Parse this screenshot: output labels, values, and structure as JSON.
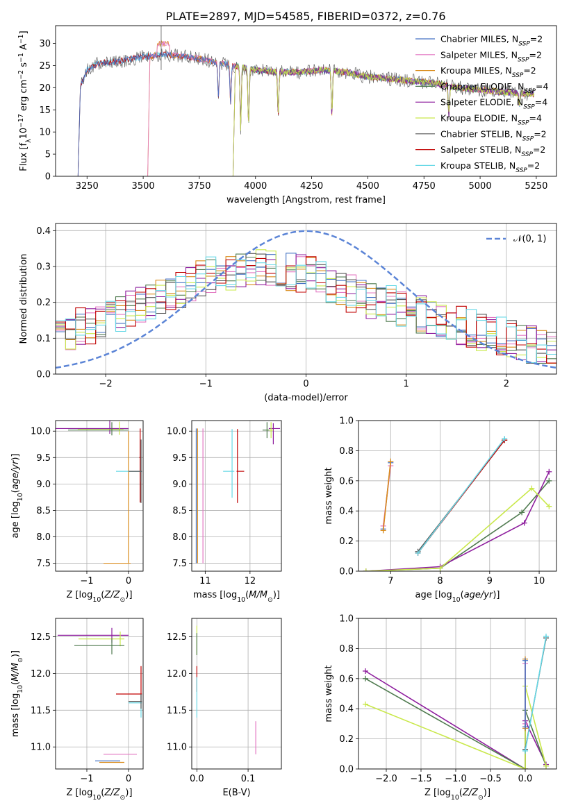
{
  "figure_title": "PLATE=2897, MJD=54585, FIBERID=0372, z=0.76",
  "model_colors": [
    "#4472c4",
    "#e377c2",
    "#d98b1a",
    "#4f7a4f",
    "#8e1e9e",
    "#c9e84a",
    "#555555",
    "#c00000",
    "#66d8e6"
  ],
  "chart_data": [
    {
      "id": "spectrum",
      "type": "line",
      "xlabel": "wavelength [Angstrom, rest frame]",
      "ylabel": "Flux [f_λ10^-17 erg cm^-2 s^-1 A^-1]",
      "xlim": [
        3110,
        5340
      ],
      "ylim": [
        0,
        34
      ],
      "xticks": [
        3250,
        3500,
        3750,
        4000,
        4250,
        4500,
        4750,
        5000,
        5250
      ],
      "yticks": [
        0,
        5,
        10,
        15,
        20,
        25,
        30
      ],
      "grid": false,
      "legend_position": "top-right",
      "series": [
        {
          "name": "Chabrier MILES, N_SSP=2",
          "start": 3220
        },
        {
          "name": "Salpeter MILES, N_SSP=2",
          "start": 3530
        },
        {
          "name": "Kroupa MILES, N_SSP=2",
          "start": 3530
        },
        {
          "name": "Chabrier ELODIE, N_SSP=4",
          "start": 3910
        },
        {
          "name": "Salpeter ELODIE, N_SSP=4",
          "start": 3910
        },
        {
          "name": "Kroupa ELODIE, N_SSP=4",
          "start": 3910
        },
        {
          "name": "Chabrier STELIB, N_SSP=2",
          "start": 3220
        },
        {
          "name": "Salpeter STELIB, N_SSP=2",
          "start": 3220
        },
        {
          "name": "Kroupa STELIB, N_SSP=2",
          "start": 3220
        }
      ],
      "continuum": {
        "x": [
          3220,
          3250,
          3300,
          3400,
          3500,
          3600,
          3700,
          3800,
          3900,
          4000,
          4100,
          4200,
          4300,
          4400,
          4500,
          4600,
          4700,
          4800,
          4900,
          5000,
          5100,
          5240
        ],
        "y": [
          20,
          24,
          25.5,
          26,
          27,
          27.5,
          27,
          26,
          25,
          24,
          23.5,
          23.5,
          24,
          23.5,
          22.5,
          22,
          21.5,
          21,
          20,
          19.5,
          19,
          18.5
        ]
      },
      "absorption_lines": [
        {
          "x": 3835,
          "y": 18
        },
        {
          "x": 3889,
          "y": 16.5
        },
        {
          "x": 3934,
          "y": 11
        },
        {
          "x": 3969,
          "y": 12
        },
        {
          "x": 4101,
          "y": 14
        },
        {
          "x": 4340,
          "y": 14
        },
        {
          "x": 4861,
          "y": 14
        },
        {
          "x": 5175,
          "y": 16
        }
      ]
    },
    {
      "id": "residuals",
      "type": "line",
      "xlabel": "(data-model)/error",
      "ylabel": "Normed distribution",
      "xlim": [
        -2.5,
        2.5
      ],
      "ylim": [
        0,
        0.42
      ],
      "xticks": [
        -2,
        -1,
        0,
        1,
        2
      ],
      "yticks": [
        0.0,
        0.1,
        0.2,
        0.3,
        0.4
      ],
      "grid": true,
      "legend_position": "top-right",
      "reference": {
        "name": "N(0,1)",
        "style": "dashed"
      },
      "histogram_envelope": {
        "x": [
          -2.5,
          -2.0,
          -1.5,
          -1.0,
          -0.5,
          0.0,
          0.5,
          1.0,
          1.5,
          2.0,
          2.5
        ],
        "y": [
          0.11,
          0.15,
          0.21,
          0.27,
          0.3,
          0.28,
          0.22,
          0.18,
          0.14,
          0.1,
          0.06
        ]
      }
    },
    {
      "id": "age_vs_Z",
      "type": "scatter",
      "xlabel": "Z [log10(Z/Z_sun)]",
      "ylabel": "age  [log10(age/yr)]",
      "xlim": [
        -1.75,
        0.35
      ],
      "ylim": [
        7.35,
        10.2
      ],
      "xticks": [
        -1,
        0
      ],
      "yticks": [
        7.5,
        8.0,
        8.5,
        9.0,
        9.5,
        10.0
      ],
      "grid": true,
      "points": [
        {
          "model": 4,
          "x": -0.45,
          "y": 10.05,
          "xerr": [
            1.3,
            0.45
          ],
          "yerr": [
            0.1,
            0.15
          ]
        },
        {
          "model": 5,
          "x": -0.22,
          "y": 10.03,
          "xerr": [
            1.0,
            0.1
          ],
          "yerr": [
            0.1,
            0.15
          ]
        },
        {
          "model": 3,
          "x": -0.4,
          "y": 10.02,
          "xerr": [
            1.05,
            0.4
          ],
          "yerr": [
            0.1,
            0.15
          ]
        },
        {
          "model": 2,
          "x": 0.0,
          "y": 7.5,
          "xerr": [
            0.6,
            0.05
          ],
          "yerr": [
            0.0,
            2.5
          ]
        },
        {
          "model": 7,
          "x": 0.28,
          "y": 9.5,
          "xerr": [
            0.02,
            0.02
          ],
          "yerr": [
            0.85,
            0.55
          ]
        },
        {
          "model": 8,
          "x": 0.3,
          "y": 9.24,
          "xerr": [
            0.6,
            0.02
          ],
          "yerr": [
            0.2,
            0.6
          ]
        },
        {
          "model": 6,
          "x": 0.3,
          "y": 9.24,
          "xerr": [
            0.3,
            0.02
          ],
          "yerr": [
            0.6,
            0.6
          ]
        }
      ]
    },
    {
      "id": "age_vs_mass",
      "type": "scatter",
      "xlabel": "mass [log10(M/M_sun)]",
      "ylabel": "",
      "xlim": [
        10.7,
        12.7
      ],
      "ylim": [
        7.35,
        10.2
      ],
      "xticks": [
        11,
        12
      ],
      "yticks": [
        7.5,
        8.0,
        8.5,
        9.0,
        9.5,
        10.0
      ],
      "grid": true,
      "points": [
        {
          "model": 0,
          "x": 10.8,
          "y": 7.5,
          "xerr": [
            0.0,
            0.0
          ],
          "yerr": [
            0.0,
            2.55
          ]
        },
        {
          "model": 1,
          "x": 10.95,
          "y": 7.5,
          "xerr": [
            0.0,
            0.0
          ],
          "yerr": [
            0.0,
            2.55
          ]
        },
        {
          "model": 2,
          "x": 10.83,
          "y": 7.5,
          "xerr": [
            0.0,
            0.0
          ],
          "yerr": [
            0.0,
            2.55
          ]
        },
        {
          "model": 7,
          "x": 11.72,
          "y": 9.24,
          "xerr": [
            0.02,
            0.15
          ],
          "yerr": [
            0.6,
            0.8
          ]
        },
        {
          "model": 8,
          "x": 11.6,
          "y": 9.24,
          "xerr": [
            0.2,
            0.05
          ],
          "yerr": [
            0.5,
            0.8
          ]
        },
        {
          "model": 4,
          "x": 12.52,
          "y": 10.05,
          "xerr": [
            0.1,
            0.15
          ],
          "yerr": [
            0.3,
            0.1
          ]
        },
        {
          "model": 5,
          "x": 12.47,
          "y": 10.02,
          "xerr": [
            0.1,
            0.05
          ],
          "yerr": [
            0.15,
            0.15
          ]
        },
        {
          "model": 3,
          "x": 12.38,
          "y": 10.02,
          "xerr": [
            0.1,
            0.05
          ],
          "yerr": [
            0.15,
            0.15
          ]
        }
      ]
    },
    {
      "id": "weight_vs_age",
      "type": "line",
      "xlabel": "age  [log10(age/yr)]",
      "ylabel": "mass weight",
      "xlim": [
        6.35,
        10.35
      ],
      "ylim": [
        0,
        1.0
      ],
      "xticks": [
        7,
        8,
        9,
        10
      ],
      "yticks": [
        0.0,
        0.2,
        0.4,
        0.6,
        0.8,
        1.0
      ],
      "grid": true,
      "series": [
        {
          "model": 0,
          "x": [
            6.85,
            7.0
          ],
          "y": [
            0.28,
            0.72
          ]
        },
        {
          "model": 1,
          "x": [
            6.85,
            7.0
          ],
          "y": [
            0.3,
            0.7
          ]
        },
        {
          "model": 2,
          "x": [
            6.85,
            7.0
          ],
          "y": [
            0.27,
            0.73
          ]
        },
        {
          "model": 6,
          "x": [
            7.55,
            9.3
          ],
          "y": [
            0.13,
            0.87
          ]
        },
        {
          "model": 7,
          "x": [
            7.55,
            9.3
          ],
          "y": [
            0.12,
            0.87
          ]
        },
        {
          "model": 8,
          "x": [
            7.55,
            9.3
          ],
          "y": [
            0.12,
            0.88
          ]
        },
        {
          "model": 3,
          "x": [
            6.5,
            8.0,
            9.65,
            10.2
          ],
          "y": [
            0.0,
            0.02,
            0.39,
            0.6
          ]
        },
        {
          "model": 4,
          "x": [
            6.5,
            8.0,
            9.7,
            10.2
          ],
          "y": [
            0.0,
            0.03,
            0.32,
            0.66
          ]
        },
        {
          "model": 5,
          "x": [
            6.5,
            8.0,
            9.85,
            10.2
          ],
          "y": [
            0.0,
            0.02,
            0.55,
            0.43
          ]
        }
      ]
    },
    {
      "id": "mass_vs_Z",
      "type": "scatter",
      "xlabel": "Z [log10(Z/Z_sun)]",
      "ylabel": "mass [log10(M/M_sun)]",
      "xlim": [
        -1.75,
        0.35
      ],
      "ylim": [
        10.7,
        12.75
      ],
      "xticks": [
        -1,
        0
      ],
      "yticks": [
        11.0,
        11.5,
        12.0,
        12.5
      ],
      "grid": true,
      "points": [
        {
          "model": 4,
          "x": -0.4,
          "y": 12.52,
          "xerr": [
            1.3,
            0.4
          ],
          "yerr": [
            0.1,
            0.1
          ]
        },
        {
          "model": 5,
          "x": -0.2,
          "y": 12.47,
          "xerr": [
            1.0,
            0.1
          ],
          "yerr": [
            0.1,
            0.1
          ]
        },
        {
          "model": 3,
          "x": -0.4,
          "y": 12.38,
          "xerr": [
            0.9,
            0.3
          ],
          "yerr": [
            0.12,
            0.1
          ]
        },
        {
          "model": 7,
          "x": 0.3,
          "y": 11.72,
          "xerr": [
            0.6,
            0.02
          ],
          "yerr": [
            0.1,
            0.38
          ]
        },
        {
          "model": 8,
          "x": 0.3,
          "y": 11.6,
          "xerr": [
            0.3,
            0.02
          ],
          "yerr": [
            0.2,
            0.1
          ]
        },
        {
          "model": 6,
          "x": 0.3,
          "y": 11.62,
          "xerr": [
            0.3,
            0.02
          ],
          "yerr": [
            0.1,
            0.1
          ]
        },
        {
          "model": 1,
          "x": -0.3,
          "y": 10.9,
          "xerr": [
            0.3,
            0.5
          ],
          "yerr": [
            0.0,
            0.0
          ]
        },
        {
          "model": 0,
          "x": -0.5,
          "y": 10.81,
          "xerr": [
            0.3,
            0.3
          ],
          "yerr": [
            0.0,
            0.0
          ]
        },
        {
          "model": 2,
          "x": -0.4,
          "y": 10.79,
          "xerr": [
            0.3,
            0.3
          ],
          "yerr": [
            0.0,
            0.0
          ]
        }
      ]
    },
    {
      "id": "mass_vs_EBV",
      "type": "scatter",
      "xlabel": "E(B-V)",
      "ylabel": "",
      "xlim": [
        -0.01,
        0.165
      ],
      "ylim": [
        10.7,
        12.75
      ],
      "xticks": [
        0.0,
        0.1
      ],
      "yticks": [
        11.0,
        11.5,
        12.0,
        12.5
      ],
      "grid": true,
      "points": [
        {
          "model": 5,
          "x": 0.0,
          "y": 12.5,
          "xerr": [
            0,
            0
          ],
          "yerr": [
            0.25,
            0.15
          ]
        },
        {
          "model": 3,
          "x": 0.0,
          "y": 12.4,
          "xerr": [
            0,
            0
          ],
          "yerr": [
            0.15,
            0.15
          ]
        },
        {
          "model": 7,
          "x": 0.0,
          "y": 11.9,
          "xerr": [
            0,
            0
          ],
          "yerr": [
            0.15,
            0.2
          ]
        },
        {
          "model": 8,
          "x": 0.0,
          "y": 11.6,
          "xerr": [
            0,
            0
          ],
          "yerr": [
            0.2,
            0.35
          ]
        },
        {
          "model": 1,
          "x": 0.115,
          "y": 11.1,
          "xerr": [
            0,
            0
          ],
          "yerr": [
            0.2,
            0.25
          ]
        }
      ]
    },
    {
      "id": "weight_vs_Z",
      "type": "line",
      "xlabel": "Z [log10(Z/Z_sun)]",
      "ylabel": "mass weight",
      "xlim": [
        -2.4,
        0.45
      ],
      "ylim": [
        0,
        1.0
      ],
      "xticks": [
        -2.0,
        -1.5,
        -1.0,
        -0.5,
        0.0
      ],
      "yticks": [
        0.0,
        0.2,
        0.4,
        0.6,
        0.8,
        1.0
      ],
      "grid": true,
      "series": [
        {
          "model": 4,
          "x": [
            -2.3,
            0.0,
            0.0,
            0.3
          ],
          "y": [
            0.65,
            0.0,
            0.32,
            0.03
          ]
        },
        {
          "model": 3,
          "x": [
            -2.3,
            0.0,
            0.0,
            0.3
          ],
          "y": [
            0.6,
            0.0,
            0.39,
            0.02
          ]
        },
        {
          "model": 5,
          "x": [
            -2.3,
            0.0,
            0.0,
            0.3
          ],
          "y": [
            0.43,
            0.0,
            0.55,
            0.02
          ]
        },
        {
          "model": 2,
          "x": [
            0.0,
            0.0
          ],
          "y": [
            0.27,
            0.73
          ]
        },
        {
          "model": 1,
          "x": [
            0.0,
            0.0
          ],
          "y": [
            0.3,
            0.7
          ]
        },
        {
          "model": 0,
          "x": [
            0.0,
            0.0
          ],
          "y": [
            0.28,
            0.72
          ]
        },
        {
          "model": 6,
          "x": [
            0.0,
            0.3
          ],
          "y": [
            0.13,
            0.87
          ]
        },
        {
          "model": 8,
          "x": [
            0.0,
            0.3
          ],
          "y": [
            0.12,
            0.88
          ]
        }
      ]
    }
  ]
}
